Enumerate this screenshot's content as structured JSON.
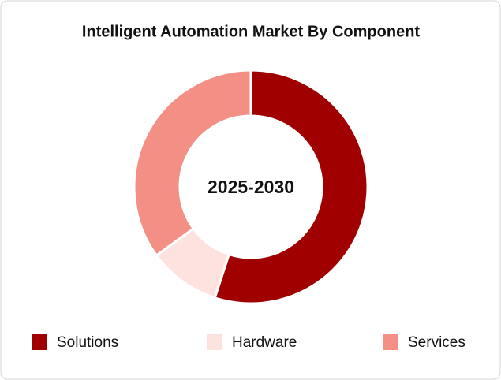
{
  "chart_data": {
    "type": "donut",
    "title": "Intelligent Automation Market By Component",
    "center_label": "2025-2030",
    "categories": [
      "Solutions",
      "Hardware",
      "Services"
    ],
    "values": [
      55,
      10,
      35
    ],
    "colors": [
      "#a00000",
      "#fde2df",
      "#f48f86"
    ]
  }
}
